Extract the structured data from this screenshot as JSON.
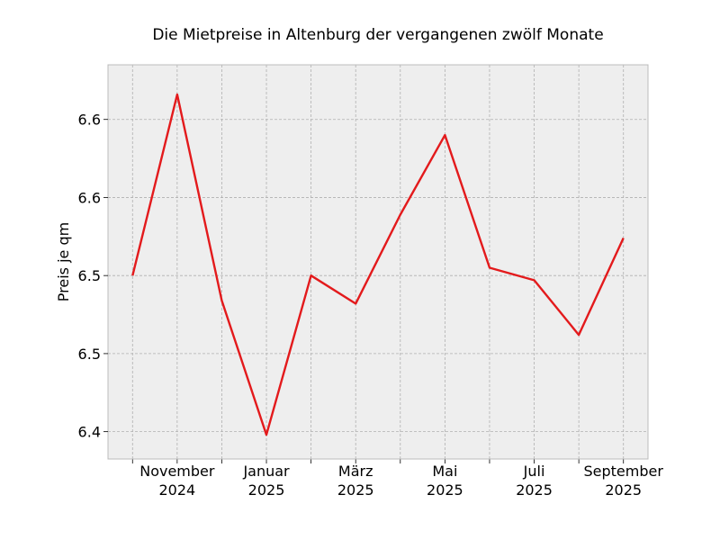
{
  "chart_data": {
    "type": "line",
    "title": "Die Mietpreise in Altenburg der vergangenen zwölf Monate",
    "xlabel": "",
    "ylabel": "Preis je qm",
    "x": [
      "2024-10",
      "2024-11",
      "2024-12",
      "2025-01",
      "2025-02",
      "2025-03",
      "2025-04",
      "2025-05",
      "2025-06",
      "2025-07",
      "2025-08",
      "2025-09"
    ],
    "xtick_labels": [
      {
        "month": "November",
        "year": "2024"
      },
      {
        "month": "Januar",
        "year": "2025"
      },
      {
        "month": "März",
        "year": "2025"
      },
      {
        "month": "Mai",
        "year": "2025"
      },
      {
        "month": "Juli",
        "year": "2025"
      },
      {
        "month": "September",
        "year": "2025"
      }
    ],
    "series": [
      {
        "values": [
          6.525,
          6.641,
          6.509,
          6.423,
          6.525,
          6.507,
          6.564,
          6.615,
          6.53,
          6.522,
          6.487,
          6.549
        ]
      }
    ],
    "ylim": [
      6.4075,
      6.66
    ],
    "yticks": [
      6.425,
      6.475,
      6.525,
      6.575,
      6.625
    ],
    "ytick_labels": [
      "6.4",
      "6.5",
      "6.5",
      "6.6",
      "6.6"
    ],
    "grid": true,
    "colors": {
      "line": "#e31a1c",
      "plot_background": "#eeeeee",
      "grid": "#b0b0b0",
      "frame": "#bcbcbc"
    }
  }
}
